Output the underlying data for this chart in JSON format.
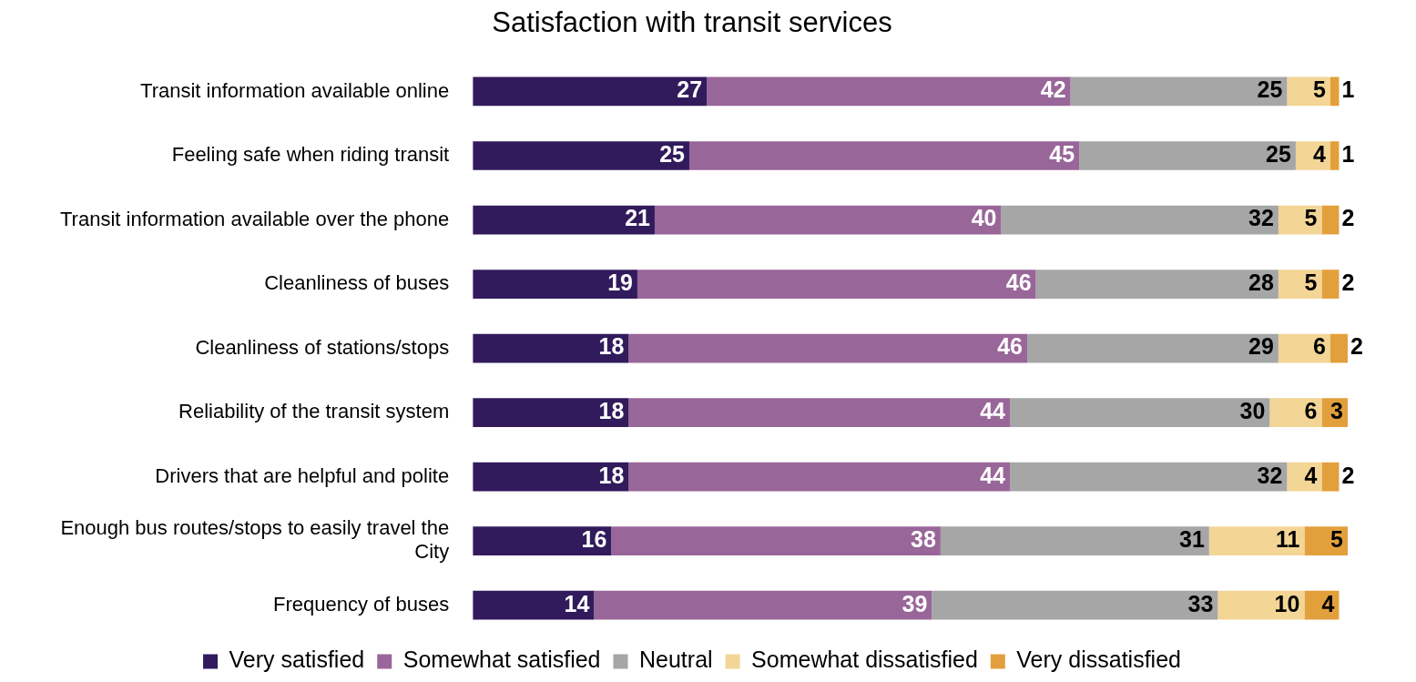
{
  "chart_data": {
    "type": "bar",
    "orientation": "horizontal",
    "stacked": true,
    "title": "Satisfaction with transit services",
    "categories": [
      "Transit information available online",
      "Feeling safe when riding transit",
      "Transit information available over the phone",
      "Cleanliness of buses",
      "Cleanliness of stations/stops",
      "Reliability of the transit system",
      "Drivers that are helpful and polite",
      "Enough bus routes/stops to easily travel the City",
      "Frequency of buses"
    ],
    "series": [
      {
        "name": "Very satisfied",
        "color": "#311b5c",
        "values": [
          27,
          25,
          21,
          19,
          18,
          18,
          18,
          16,
          14
        ]
      },
      {
        "name": "Somewhat satisfied",
        "color": "#996699",
        "values": [
          42,
          45,
          40,
          46,
          46,
          44,
          44,
          38,
          39
        ]
      },
      {
        "name": "Neutral",
        "color": "#a6a6a6",
        "values": [
          25,
          25,
          32,
          28,
          29,
          30,
          32,
          31,
          33
        ]
      },
      {
        "name": "Somewhat dissatisfied",
        "color": "#f3d596",
        "values": [
          5,
          4,
          5,
          5,
          6,
          6,
          4,
          11,
          10
        ]
      },
      {
        "name": "Very dissatisfied",
        "color": "#e2a03c",
        "values": [
          1,
          1,
          2,
          2,
          2,
          3,
          2,
          5,
          4
        ]
      }
    ],
    "data_labels": true,
    "legend": "bottom",
    "grid": false,
    "tick_labels": "y"
  }
}
